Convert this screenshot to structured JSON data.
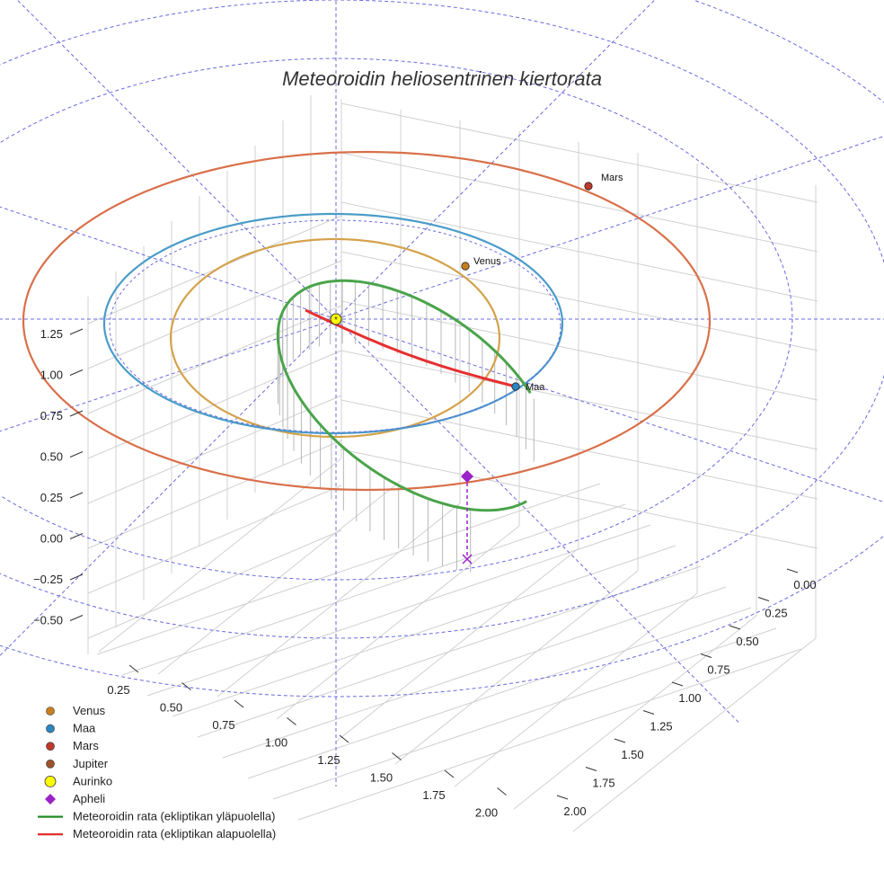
{
  "chart_data": {
    "type": "3d-line",
    "title": "Meteoroidin heliosentrinen kiertorata",
    "xlabel": "",
    "ylabel": "",
    "zlabel": "",
    "x_ticks": [
      "0.25",
      "0.50",
      "0.75",
      "1.00",
      "1.25",
      "1.50",
      "1.75",
      "2.00"
    ],
    "y_ticks": [
      "0.00",
      "0.25",
      "0.50",
      "0.75",
      "1.00",
      "1.25",
      "1.50",
      "1.75",
      "2.00"
    ],
    "z_ticks": [
      "1.25",
      "1.00",
      "0.75",
      "0.50",
      "0.25",
      "0.00",
      "−0.25",
      "−0.50"
    ],
    "planets": [
      {
        "name": "Venus",
        "label": "Venus",
        "color": "#d4a24a",
        "marker": "#c87f1e"
      },
      {
        "name": "Maa",
        "label": "Maa",
        "color": "#4a9cc9",
        "marker": "#2e86c1"
      },
      {
        "name": "Mars",
        "label": "Mars",
        "color": "#d8704a",
        "marker": "#c0392b"
      }
    ],
    "meteoroid": {
      "above_color": "#4aa44a",
      "below_color": "#e53030",
      "aphelion_color": "#9b22c7"
    },
    "grid_color": "#6a6ae0",
    "legend": {
      "placement": "bottom-left",
      "items": [
        {
          "label": "Venus",
          "color": "#c87f1e",
          "kind": "dot"
        },
        {
          "label": "Maa",
          "color": "#2e86c1",
          "kind": "dot"
        },
        {
          "label": "Mars",
          "color": "#c0392b",
          "kind": "dot"
        },
        {
          "label": "Jupiter",
          "color": "#a0522d",
          "kind": "dot"
        },
        {
          "label": "Aurinko",
          "color": "#ffff00",
          "kind": "sun"
        },
        {
          "label": "Apheli",
          "color": "#9b22c7",
          "kind": "diamond"
        },
        {
          "label": "Meteoroidin rata (ekliptikan yläpuolella)",
          "color": "#228b22",
          "kind": "line"
        },
        {
          "label": "Meteoroidin rata (ekliptikan alapuolella)",
          "color": "#e52222",
          "kind": "line"
        }
      ]
    }
  }
}
